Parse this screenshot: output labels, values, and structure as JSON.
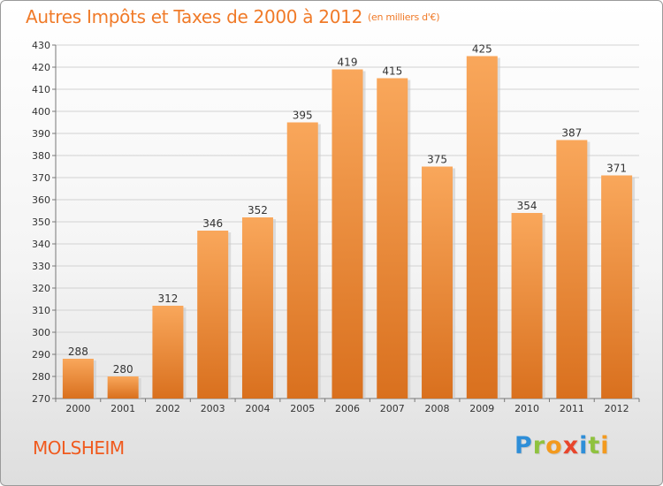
{
  "title": "Autres Impôts et Taxes de 2000 à 2012",
  "title_unit": "(en milliers d'€)",
  "commune": "MOLSHEIM",
  "logo": {
    "letters": [
      {
        "ch": "P",
        "color": "#2e8ed8"
      },
      {
        "ch": "r",
        "color": "#8fc23f"
      },
      {
        "ch": "o",
        "color": "#f39a1e"
      },
      {
        "ch": "x",
        "color": "#e8452c"
      },
      {
        "ch": "i",
        "color": "#2e8ed8"
      },
      {
        "ch": "t",
        "color": "#8fc23f"
      },
      {
        "ch": "i",
        "color": "#f39a1e"
      }
    ]
  },
  "colors": {
    "bar_top": "#f9a75b",
    "bar_bottom": "#d9701e",
    "title": "#f07a28",
    "commune": "#f05a1e"
  },
  "chart_data": {
    "type": "bar",
    "categories": [
      "2000",
      "2001",
      "2002",
      "2003",
      "2004",
      "2005",
      "2006",
      "2007",
      "2008",
      "2009",
      "2010",
      "2011",
      "2012"
    ],
    "values": [
      288,
      280,
      312,
      346,
      352,
      395,
      419,
      415,
      375,
      425,
      354,
      387,
      371
    ],
    "ylim": [
      270,
      430
    ],
    "ytick_step": 10,
    "grid": true
  }
}
